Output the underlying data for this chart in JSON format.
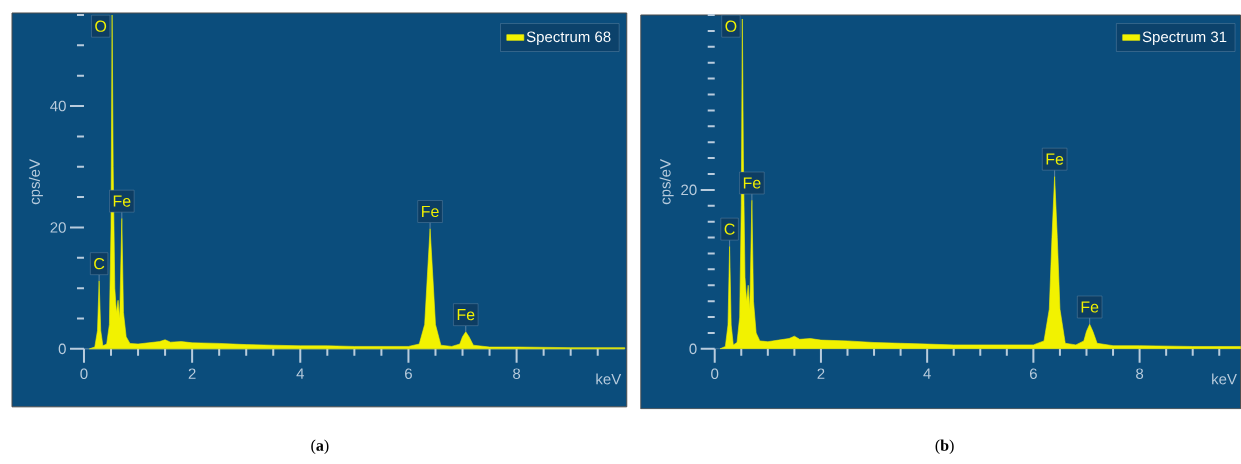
{
  "chart_data": [
    {
      "type": "area",
      "ylabel": "cps/eV",
      "xlabel": "keV",
      "legend": "top right",
      "xlim": [
        0,
        10
      ],
      "ylim": [
        0,
        55
      ],
      "xticks": [
        0,
        {
          "value": 0.5,
          "label": null
        },
        {
          "value": 1,
          "label": null
        },
        {
          "value": 1.5,
          "label": null
        },
        2,
        {
          "value": 2.5,
          "label": null
        },
        {
          "value": 3,
          "label": null
        },
        {
          "value": 3.5,
          "label": null
        },
        4,
        {
          "value": 4.5,
          "label": null
        },
        {
          "value": 5,
          "label": null
        },
        {
          "value": 5.5,
          "label": null
        },
        6,
        {
          "value": 6.5,
          "label": null
        },
        {
          "value": 7,
          "label": null
        },
        {
          "value": 7.5,
          "label": null
        },
        8,
        {
          "value": 8.5,
          "label": null
        },
        {
          "value": 9,
          "label": null
        },
        {
          "value": 9.5,
          "label": null
        }
      ],
      "yticks": [
        0,
        {
          "value": 5,
          "label": null
        },
        {
          "value": 10,
          "label": null
        },
        {
          "value": 15,
          "label": null
        },
        20,
        {
          "value": 25,
          "label": null
        },
        {
          "value": 30,
          "label": null
        },
        {
          "value": 35,
          "label": null
        },
        40,
        {
          "value": 45,
          "label": null
        },
        {
          "value": 50,
          "label": null
        },
        {
          "value": 55,
          "label": null
        }
      ],
      "x": [
        0.1,
        0.2,
        0.25,
        0.28,
        0.31,
        0.35,
        0.42,
        0.47,
        0.5,
        0.52,
        0.54,
        0.57,
        0.6,
        0.63,
        0.66,
        0.7,
        0.73,
        0.78,
        0.85,
        1.0,
        1.2,
        1.4,
        1.5,
        1.6,
        1.8,
        2.0,
        2.5,
        3.0,
        3.5,
        4.0,
        4.5,
        5.0,
        5.5,
        6.0,
        6.2,
        6.3,
        6.35,
        6.4,
        6.45,
        6.5,
        6.6,
        6.8,
        6.95,
        7.0,
        7.06,
        7.12,
        7.2,
        7.5,
        8.0,
        9.0,
        10.0
      ],
      "series": [
        {
          "name": "Spectrum 68",
          "color": "#f2f200",
          "values": [
            0,
            0.3,
            3,
            11.2,
            3,
            0.5,
            0.8,
            4,
            20,
            55,
            30,
            10,
            6,
            8,
            5,
            21.5,
            6,
            2,
            0.9,
            0.8,
            1.0,
            1.2,
            1.5,
            1.1,
            1.2,
            1.0,
            0.9,
            0.7,
            0.6,
            0.5,
            0.5,
            0.4,
            0.4,
            0.4,
            0.8,
            4,
            12,
            19.8,
            12,
            4,
            0.6,
            0.4,
            0.8,
            2,
            2.8,
            2,
            0.6,
            0.3,
            0.3,
            0.2,
            0.2
          ]
        }
      ],
      "annotations": [
        {
          "text": "C",
          "x": 0.28,
          "y": 11.2
        },
        {
          "text": "O",
          "x": 0.52,
          "y": 55
        },
        {
          "text": "Fe",
          "x": 0.7,
          "y": 21.5
        },
        {
          "text": "Fe",
          "x": 6.4,
          "y": 19.8
        },
        {
          "text": "Fe",
          "x": 7.06,
          "y": 2.8
        },
        "(**a**)"
      ]
    },
    {
      "type": "area",
      "ylabel": "cps/eV",
      "xlabel": "keV",
      "legend": "top right",
      "xlim": [
        0,
        9.9
      ],
      "ylim": [
        0,
        42
      ],
      "xticks": [
        0,
        {
          "value": 0.5,
          "label": null
        },
        {
          "value": 1,
          "label": null
        },
        {
          "value": 1.5,
          "label": null
        },
        2,
        {
          "value": 2.5,
          "label": null
        },
        {
          "value": 3,
          "label": null
        },
        {
          "value": 3.5,
          "label": null
        },
        4,
        {
          "value": 4.5,
          "label": null
        },
        {
          "value": 5,
          "label": null
        },
        {
          "value": 5.5,
          "label": null
        },
        6,
        {
          "value": 6.5,
          "label": null
        },
        {
          "value": 7,
          "label": null
        },
        {
          "value": 7.5,
          "label": null
        },
        8,
        {
          "value": 8.5,
          "label": null
        },
        {
          "value": 9,
          "label": null
        },
        {
          "value": 9.5,
          "label": null
        }
      ],
      "yticks": [
        0,
        {
          "value": 2,
          "label": null
        },
        {
          "value": 4,
          "label": null
        },
        {
          "value": 6,
          "label": null
        },
        {
          "value": 8,
          "label": null
        },
        {
          "value": 10,
          "label": null
        },
        {
          "value": 12,
          "label": null
        },
        {
          "value": 14,
          "label": null
        },
        {
          "value": 16,
          "label": null
        },
        {
          "value": 18,
          "label": null
        },
        20,
        {
          "value": 22,
          "label": null
        },
        {
          "value": 24,
          "label": null
        },
        {
          "value": 26,
          "label": null
        },
        {
          "value": 28,
          "label": null
        },
        {
          "value": 30,
          "label": null
        },
        {
          "value": 32,
          "label": null
        },
        {
          "value": 34,
          "label": null
        },
        {
          "value": 36,
          "label": null
        },
        {
          "value": 38,
          "label": null
        },
        {
          "value": 40,
          "label": null
        },
        {
          "value": 42,
          "label": null
        }
      ],
      "x": [
        0.1,
        0.2,
        0.25,
        0.28,
        0.31,
        0.35,
        0.42,
        0.47,
        0.5,
        0.52,
        0.54,
        0.57,
        0.6,
        0.63,
        0.66,
        0.7,
        0.73,
        0.78,
        0.85,
        1.0,
        1.2,
        1.4,
        1.5,
        1.6,
        1.8,
        2.0,
        2.5,
        3.0,
        3.5,
        4.0,
        4.5,
        5.0,
        5.5,
        6.0,
        6.2,
        6.3,
        6.35,
        6.4,
        6.45,
        6.5,
        6.6,
        6.8,
        6.95,
        7.0,
        7.06,
        7.12,
        7.2,
        7.5,
        8.0,
        9.0,
        9.9
      ],
      "series": [
        {
          "name": "Spectrum 31",
          "color": "#f2f200",
          "values": [
            0,
            0.3,
            3,
            12.9,
            3,
            0.5,
            0.8,
            4,
            18,
            41.5,
            24,
            9,
            6,
            8,
            5,
            18.7,
            6,
            2,
            1.0,
            0.9,
            1.1,
            1.3,
            1.6,
            1.2,
            1.3,
            1.1,
            1.0,
            0.8,
            0.7,
            0.6,
            0.5,
            0.5,
            0.5,
            0.5,
            1.0,
            5,
            14,
            21.7,
            14,
            5,
            0.7,
            0.5,
            1.0,
            2.2,
            3.1,
            2.2,
            0.7,
            0.4,
            0.4,
            0.3,
            0.3
          ]
        }
      ],
      "annotations": [
        {
          "text": "C",
          "x": 0.28,
          "y": 12.9
        },
        {
          "text": "O",
          "x": 0.52,
          "y": 41.5
        },
        {
          "text": "Fe",
          "x": 0.7,
          "y": 18.7
        },
        {
          "text": "Fe",
          "x": 6.4,
          "y": 21.7
        },
        {
          "text": "Fe",
          "x": 7.06,
          "y": 3.1
        },
        "(**b**)"
      ]
    }
  ]
}
